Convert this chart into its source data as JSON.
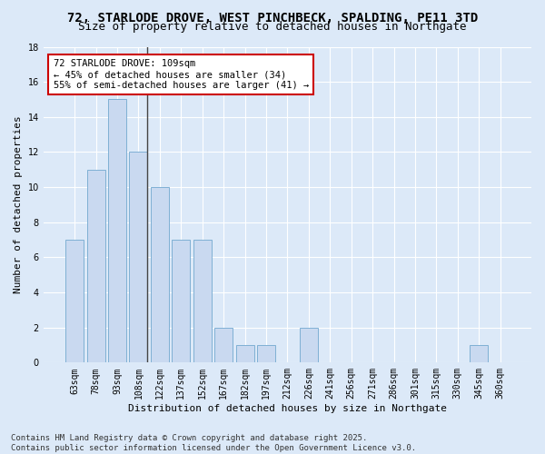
{
  "title_line1": "72, STARLODE DROVE, WEST PINCHBECK, SPALDING, PE11 3TD",
  "title_line2": "Size of property relative to detached houses in Northgate",
  "xlabel": "Distribution of detached houses by size in Northgate",
  "ylabel": "Number of detached properties",
  "categories": [
    "63sqm",
    "78sqm",
    "93sqm",
    "108sqm",
    "122sqm",
    "137sqm",
    "152sqm",
    "167sqm",
    "182sqm",
    "197sqm",
    "212sqm",
    "226sqm",
    "241sqm",
    "256sqm",
    "271sqm",
    "286sqm",
    "301sqm",
    "315sqm",
    "330sqm",
    "345sqm",
    "360sqm"
  ],
  "values": [
    7,
    11,
    15,
    12,
    10,
    7,
    7,
    2,
    1,
    1,
    0,
    2,
    0,
    0,
    0,
    0,
    0,
    0,
    0,
    1,
    0
  ],
  "bar_color": "#c9d9f0",
  "bar_edge_color": "#7fb0d4",
  "highlight_bar_index": 3,
  "highlight_line_color": "#444444",
  "annotation_text": "72 STARLODE DROVE: 109sqm\n← 45% of detached houses are smaller (34)\n55% of semi-detached houses are larger (41) →",
  "annotation_box_color": "#ffffff",
  "annotation_box_edge": "#cc0000",
  "background_color": "#dce9f8",
  "grid_color": "#ffffff",
  "ylim": [
    0,
    18
  ],
  "yticks": [
    0,
    2,
    4,
    6,
    8,
    10,
    12,
    14,
    16,
    18
  ],
  "footer_line1": "Contains HM Land Registry data © Crown copyright and database right 2025.",
  "footer_line2": "Contains public sector information licensed under the Open Government Licence v3.0.",
  "title_fontsize": 10,
  "subtitle_fontsize": 9,
  "axis_label_fontsize": 8,
  "tick_fontsize": 7,
  "annotation_fontsize": 7.5,
  "footer_fontsize": 6.5
}
